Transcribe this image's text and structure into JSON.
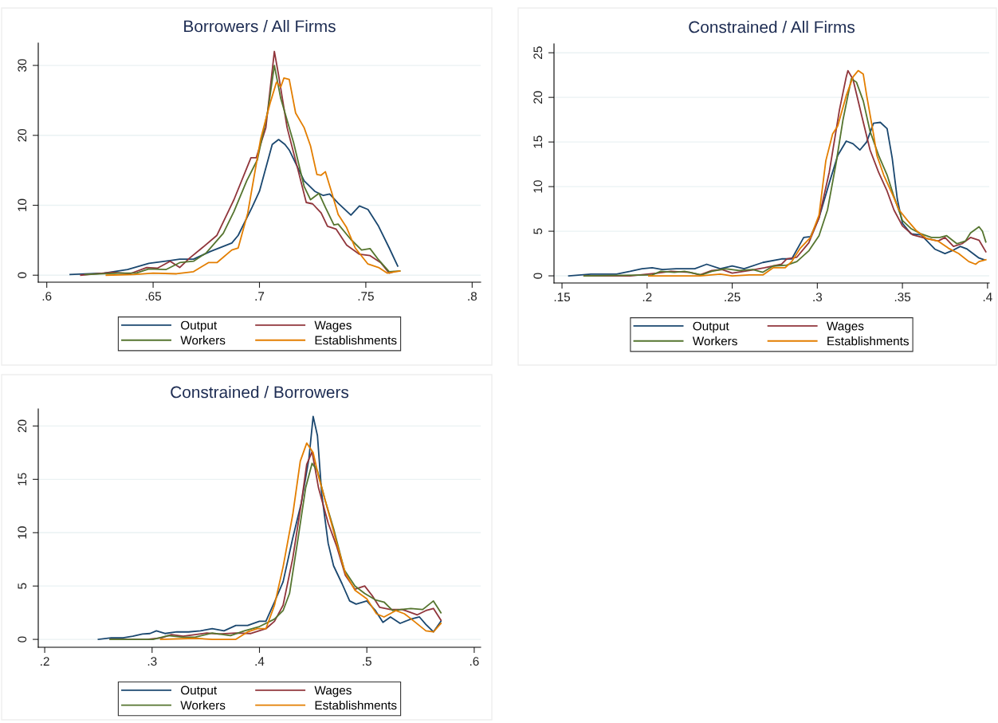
{
  "chart_data": [
    {
      "type": "line",
      "title": "Borrowers / All Firms",
      "grid": "y",
      "legend": "bottom",
      "xlim": [
        0.596,
        0.804
      ],
      "xticks": [
        {
          "value": 0.6,
          "label": ".6"
        },
        {
          "value": 0.65,
          "label": ".65"
        },
        {
          "value": 0.7,
          "label": ".7"
        },
        {
          "value": 0.75,
          "label": ".75"
        },
        {
          "value": 0.8,
          "label": ".8"
        }
      ],
      "ylim": [
        -1,
        33.2
      ],
      "yticks": [
        0,
        10,
        20,
        30
      ],
      "series": [
        {
          "name": "Output",
          "color": "#1a476f",
          "x": [
            0.611,
            0.627,
            0.638,
            0.648,
            0.658,
            0.6625,
            0.669,
            0.677,
            0.687,
            0.69,
            0.6965,
            0.7,
            0.706,
            0.709,
            0.712,
            0.714,
            0.721,
            0.726,
            0.73,
            0.733,
            0.737,
            0.743,
            0.747,
            0.751,
            0.756,
            0.761,
            0.765
          ],
          "values": [
            0.1,
            0.3,
            0.8,
            1.7,
            2.1,
            2.3,
            2.3,
            3.4,
            4.6,
            5.7,
            9.7,
            12.0,
            18.7,
            19.4,
            18.7,
            17.9,
            13.5,
            12.0,
            11.4,
            11.6,
            10.3,
            8.6,
            9.9,
            9.4,
            7.0,
            3.9,
            1.3
          ]
        },
        {
          "name": "Wages",
          "color": "#90353b",
          "x": [
            0.616,
            0.631,
            0.639,
            0.647,
            0.652,
            0.658,
            0.6625,
            0.667,
            0.673,
            0.68,
            0.688,
            0.696,
            0.6985,
            0.703,
            0.707,
            0.709,
            0.713,
            0.718,
            0.722,
            0.725,
            0.729,
            0.732,
            0.736,
            0.741,
            0.747,
            0.752,
            0.757,
            0.761,
            0.763
          ],
          "values": [
            0,
            0.4,
            0.2,
            1.1,
            1.0,
            2.0,
            1.1,
            2.4,
            3.9,
            5.7,
            10.8,
            16.8,
            16.8,
            21.1,
            32.0,
            28.6,
            21.1,
            15.2,
            10.4,
            10.2,
            8.9,
            7.0,
            6.6,
            4.3,
            3.0,
            2.8,
            1.8,
            0.3,
            0.5
          ]
        },
        {
          "name": "Workers",
          "color": "#55752f",
          "x": [
            0.618,
            0.634,
            0.642,
            0.648,
            0.656,
            0.6625,
            0.669,
            0.675,
            0.683,
            0.688,
            0.694,
            0.699,
            0.704,
            0.707,
            0.71,
            0.716,
            0.721,
            0.724,
            0.728,
            0.731,
            0.735,
            0.737,
            0.743,
            0.748,
            0.752,
            0.756,
            0.761,
            0.766
          ],
          "values": [
            0.1,
            0.3,
            0.3,
            0.9,
            0.8,
            1.8,
            2.0,
            3.2,
            6.0,
            9.1,
            13.5,
            16.5,
            23.6,
            30.0,
            25.3,
            19.0,
            12.7,
            10.8,
            11.7,
            9.7,
            7.2,
            7.3,
            5.1,
            3.6,
            3.8,
            2.2,
            0.5,
            0.6
          ]
        },
        {
          "name": "Establishments",
          "color": "#e37e00",
          "x": [
            0.628,
            0.641,
            0.65,
            0.661,
            0.669,
            0.676,
            0.68,
            0.687,
            0.69,
            0.6945,
            0.7005,
            0.705,
            0.708,
            0.71,
            0.7115,
            0.714,
            0.717,
            0.721,
            0.724,
            0.727,
            0.729,
            0.731,
            0.734,
            0.737,
            0.741,
            0.745,
            0.751,
            0.756,
            0.76,
            0.766
          ],
          "values": [
            0,
            0.1,
            0.3,
            0.2,
            0.5,
            1.8,
            1.8,
            3.6,
            3.9,
            8.9,
            19.4,
            24.6,
            27.6,
            26.9,
            28.2,
            28.0,
            23.2,
            21.1,
            18.5,
            14.4,
            14.3,
            14.8,
            11.8,
            8.7,
            6.8,
            3.9,
            1.6,
            1.1,
            0.3,
            0.6
          ]
        }
      ]
    },
    {
      "type": "line",
      "title": "Constrained / All Firms",
      "grid": "y",
      "legend": "bottom",
      "xlim": [
        0.1453,
        0.401
      ],
      "xticks": [
        {
          "value": 0.15,
          "label": ".15"
        },
        {
          "value": 0.2,
          "label": ".2"
        },
        {
          "value": 0.25,
          "label": ".25"
        },
        {
          "value": 0.3,
          "label": ".3"
        },
        {
          "value": 0.35,
          "label": ".35"
        },
        {
          "value": 0.4,
          "label": ".4"
        }
      ],
      "ylim": [
        -0.8,
        26
      ],
      "yticks": [
        0,
        5,
        10,
        15,
        20,
        25
      ],
      "series": [
        {
          "name": "Output",
          "color": "#1a476f",
          "x": [
            0.154,
            0.167,
            0.182,
            0.19,
            0.197,
            0.203,
            0.209,
            0.217,
            0.228,
            0.235,
            0.243,
            0.25,
            0.257,
            0.268,
            0.279,
            0.285,
            0.292,
            0.296,
            0.301,
            0.307,
            0.312,
            0.317,
            0.321,
            0.325,
            0.329,
            0.333,
            0.337,
            0.341,
            0.344,
            0.347,
            0.35,
            0.355,
            0.361,
            0.369,
            0.375,
            0.379,
            0.384,
            0.388,
            0.395,
            0.398
          ],
          "values": [
            0,
            0.2,
            0.2,
            0.5,
            0.8,
            0.9,
            0.7,
            0.8,
            0.8,
            1.3,
            0.8,
            1.1,
            0.8,
            1.5,
            1.9,
            1.9,
            4.3,
            4.4,
            6.5,
            10.4,
            13.5,
            15.1,
            14.8,
            14.1,
            15.0,
            17.1,
            17.2,
            16.5,
            13.2,
            8.6,
            5.9,
            4.7,
            4.6,
            3.0,
            2.5,
            2.8,
            3.3,
            3.0,
            2.0,
            1.8
          ]
        },
        {
          "name": "Wages",
          "color": "#90353b",
          "x": [
            0.163,
            0.19,
            0.206,
            0.214,
            0.225,
            0.231,
            0.238,
            0.244,
            0.25,
            0.26,
            0.269,
            0.279,
            0.282,
            0.288,
            0.295,
            0.301,
            0.307,
            0.313,
            0.317,
            0.318,
            0.321,
            0.326,
            0.331,
            0.336,
            0.341,
            0.345,
            0.35,
            0.356,
            0.364,
            0.371,
            0.375,
            0.38,
            0.385,
            0.39,
            0.395,
            0.399
          ],
          "values": [
            0,
            0,
            0.3,
            0.5,
            0.4,
            0.1,
            0.6,
            0.7,
            0.3,
            0.6,
            0.9,
            1.3,
            1.9,
            2.1,
            3.7,
            6.5,
            11.6,
            18.6,
            22.3,
            23.0,
            22.0,
            18.0,
            14.1,
            11.6,
            9.5,
            7.4,
            5.6,
            4.6,
            4.2,
            3.9,
            4.3,
            3.3,
            3.6,
            4.3,
            4.0,
            2.7
          ]
        },
        {
          "name": "Workers",
          "color": "#55752f",
          "x": [
            0.163,
            0.203,
            0.208,
            0.216,
            0.222,
            0.232,
            0.238,
            0.246,
            0.254,
            0.262,
            0.268,
            0.274,
            0.282,
            0.288,
            0.295,
            0.301,
            0.306,
            0.311,
            0.315,
            0.32,
            0.323,
            0.327,
            0.331,
            0.336,
            0.341,
            0.345,
            0.35,
            0.355,
            0.361,
            0.367,
            0.372,
            0.376,
            0.382,
            0.387,
            0.39,
            0.395,
            0.397,
            0.399
          ],
          "values": [
            0,
            0.1,
            0.5,
            0.4,
            0.5,
            0.1,
            0.5,
            0.8,
            0.6,
            0.7,
            0.4,
            1.1,
            1.2,
            1.6,
            2.8,
            4.5,
            7.4,
            12.6,
            17.4,
            22.1,
            21.7,
            19.6,
            16.2,
            13.5,
            11.3,
            8.9,
            6.2,
            5.3,
            4.7,
            4.3,
            4.3,
            4.5,
            3.6,
            3.9,
            4.8,
            5.5,
            5.0,
            3.8
          ]
        },
        {
          "name": "Establishments",
          "color": "#e37e00",
          "x": [
            0.201,
            0.222,
            0.231,
            0.243,
            0.25,
            0.26,
            0.268,
            0.274,
            0.281,
            0.285,
            0.29,
            0.296,
            0.301,
            0.305,
            0.309,
            0.312,
            0.317,
            0.321,
            0.324,
            0.327,
            0.329,
            0.333,
            0.335,
            0.339,
            0.344,
            0.348,
            0.353,
            0.358,
            0.364,
            0.371,
            0.377,
            0.383,
            0.389,
            0.393,
            0.395,
            0.399
          ],
          "values": [
            0,
            0,
            0,
            0.2,
            0,
            0.1,
            0.1,
            0.9,
            0.9,
            1.6,
            3.1,
            4.3,
            6.8,
            12.9,
            15.9,
            16.8,
            20.2,
            22.3,
            23.0,
            22.6,
            20.2,
            15.9,
            13.5,
            11.3,
            9.2,
            7.4,
            6.2,
            5.1,
            4.2,
            3.9,
            3.1,
            2.5,
            1.6,
            1.3,
            1.6,
            1.8
          ]
        }
      ]
    },
    {
      "type": "line",
      "title": "Constrained / Borrowers",
      "grid": "y",
      "legend": "bottom",
      "xlim": [
        0.194,
        0.606
      ],
      "xticks": [
        {
          "value": 0.2,
          "label": ".2"
        },
        {
          "value": 0.3,
          "label": ".3"
        },
        {
          "value": 0.4,
          "label": ".4"
        },
        {
          "value": 0.5,
          "label": ".5"
        },
        {
          "value": 0.6,
          "label": ".6"
        }
      ],
      "ylim": [
        -0.74,
        21.6
      ],
      "yticks": [
        0,
        5,
        10,
        15,
        20
      ],
      "series": [
        {
          "name": "Output",
          "color": "#1a476f",
          "x": [
            0.25,
            0.262,
            0.273,
            0.282,
            0.291,
            0.298,
            0.304,
            0.312,
            0.323,
            0.334,
            0.345,
            0.356,
            0.367,
            0.378,
            0.389,
            0.4,
            0.406,
            0.414,
            0.422,
            0.431,
            0.439,
            0.446,
            0.45,
            0.454,
            0.458,
            0.464,
            0.469,
            0.477,
            0.484,
            0.49,
            0.5,
            0.508,
            0.515,
            0.522,
            0.531,
            0.541,
            0.549,
            0.555,
            0.562,
            0.569
          ],
          "values": [
            0,
            0.15,
            0.15,
            0.3,
            0.5,
            0.55,
            0.8,
            0.55,
            0.7,
            0.7,
            0.8,
            1.0,
            0.8,
            1.3,
            1.3,
            1.7,
            1.7,
            3.5,
            5.4,
            9.5,
            12.8,
            16.9,
            20.9,
            19.1,
            13.6,
            9.0,
            6.9,
            5.2,
            3.6,
            3.3,
            3.6,
            2.7,
            1.6,
            2.1,
            1.5,
            1.9,
            2.1,
            1.4,
            0.7,
            1.7
          ]
        },
        {
          "name": "Wages",
          "color": "#90353b",
          "x": [
            0.261,
            0.295,
            0.309,
            0.318,
            0.329,
            0.351,
            0.362,
            0.378,
            0.392,
            0.406,
            0.414,
            0.422,
            0.431,
            0.439,
            0.444,
            0.449,
            0.455,
            0.464,
            0.472,
            0.48,
            0.489,
            0.498,
            0.505,
            0.512,
            0.522,
            0.533,
            0.547,
            0.555,
            0.562,
            0.569
          ],
          "values": [
            0,
            0,
            0.15,
            0.45,
            0.3,
            0.6,
            0.5,
            0.6,
            0.55,
            1.0,
            1.7,
            3.2,
            7.6,
            12.8,
            16.4,
            17.6,
            14.2,
            10.9,
            8.7,
            6.0,
            4.7,
            5.0,
            4.1,
            3.0,
            2.8,
            2.8,
            2.3,
            2.7,
            2.9,
            1.8
          ]
        },
        {
          "name": "Workers",
          "color": "#55752f",
          "x": [
            0.261,
            0.301,
            0.315,
            0.329,
            0.34,
            0.356,
            0.373,
            0.386,
            0.4,
            0.414,
            0.422,
            0.428,
            0.436,
            0.443,
            0.449,
            0.454,
            0.461,
            0.469,
            0.479,
            0.489,
            0.498,
            0.508,
            0.516,
            0.524,
            0.541,
            0.552,
            0.562,
            0.569
          ],
          "values": [
            0,
            0,
            0.35,
            0.2,
            0.2,
            0.6,
            0.35,
            0.8,
            1.2,
            1.9,
            2.7,
            4.3,
            9.5,
            14.2,
            16.5,
            15.8,
            13.1,
            10.4,
            6.5,
            5.0,
            4.3,
            3.7,
            3.5,
            2.7,
            2.9,
            2.8,
            3.6,
            2.5
          ]
        },
        {
          "name": "Establishments",
          "color": "#e37e00",
          "x": [
            0.308,
            0.34,
            0.356,
            0.378,
            0.389,
            0.398,
            0.406,
            0.414,
            0.422,
            0.431,
            0.438,
            0.444,
            0.45,
            0.455,
            0.464,
            0.472,
            0.48,
            0.489,
            0.5,
            0.509,
            0.516,
            0.527,
            0.535,
            0.544,
            0.555,
            0.562,
            0.569
          ],
          "values": [
            0,
            0.1,
            0,
            0,
            0.7,
            1.0,
            1.0,
            3.2,
            6.8,
            11.7,
            16.7,
            18.4,
            17.5,
            15.3,
            12.0,
            9.0,
            6.2,
            4.6,
            3.8,
            2.4,
            2.1,
            2.7,
            2.4,
            1.7,
            0.8,
            0.7,
            1.5
          ]
        }
      ]
    }
  ]
}
